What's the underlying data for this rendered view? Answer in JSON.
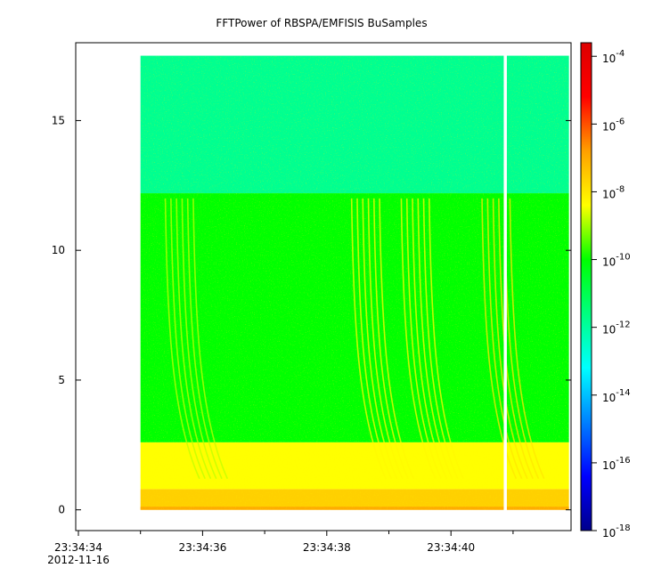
{
  "chart_data": {
    "type": "heatmap",
    "title": "FFTPower of RBSPA/EMFISIS  BuSamples",
    "xlabel": "",
    "ylabel": "",
    "x_range": [
      "23:34:34",
      "23:34:41.9"
    ],
    "x_ticks": [
      {
        "label": "23:34:34",
        "sublabel": "2012-11-16",
        "t": 0
      },
      {
        "label": "23:34:36",
        "t": 2
      },
      {
        "label": "23:34:38",
        "t": 4
      },
      {
        "label": "23:34:40",
        "t": 6
      }
    ],
    "x_minor_ticks_s": [
      1,
      3,
      5,
      7
    ],
    "data_start_s": 1.0,
    "data_end_s": 7.9,
    "gap_s": [
      6.85,
      6.9
    ],
    "ylim": [
      -0.8,
      18.0
    ],
    "y_ticks": [
      0,
      5,
      10,
      15
    ],
    "data_y_range": [
      0,
      17.5
    ],
    "colorbar": {
      "scale": "log",
      "range": [
        "1e-18",
        "1e-3.6"
      ],
      "ticks": [
        {
          "base": "10",
          "exp": "-4"
        },
        {
          "base": "10",
          "exp": "-6"
        },
        {
          "base": "10",
          "exp": "-8"
        },
        {
          "base": "10",
          "exp": "-10"
        },
        {
          "base": "10",
          "exp": "-12"
        },
        {
          "base": "10",
          "exp": "-14"
        },
        {
          "base": "10",
          "exp": "-16"
        },
        {
          "base": "10",
          "exp": "-18"
        }
      ],
      "tick_values_log": [
        -4,
        -6,
        -8,
        -10,
        -12,
        -14,
        -16,
        -18
      ],
      "colors": [
        "#00008b",
        "#0000ff",
        "#0080ff",
        "#00ffff",
        "#00ff80",
        "#00ff00",
        "#ffff00",
        "#ffa000",
        "#ff0000",
        "#dd0000"
      ]
    },
    "bands": [
      {
        "y_range": [
          12.2,
          17.5
        ],
        "log_power": -11.8
      },
      {
        "y_range": [
          2.6,
          12.2
        ],
        "log_power": -10.0
      },
      {
        "y_range": [
          0.8,
          2.6
        ],
        "log_power": -8.4
      },
      {
        "y_range": [
          0,
          0.8
        ],
        "log_power": -7.6
      }
    ],
    "features": [
      {
        "name": "chorus-burst-1",
        "t_s": 1.4,
        "log_power": -8.8
      },
      {
        "name": "chorus-burst-2",
        "t_s": 4.4,
        "log_power": -8.3
      },
      {
        "name": "chorus-burst-3",
        "t_s": 5.2,
        "log_power": -8.3
      },
      {
        "name": "chorus-burst-4",
        "t_s": 6.5,
        "log_power": -8.0
      }
    ]
  }
}
